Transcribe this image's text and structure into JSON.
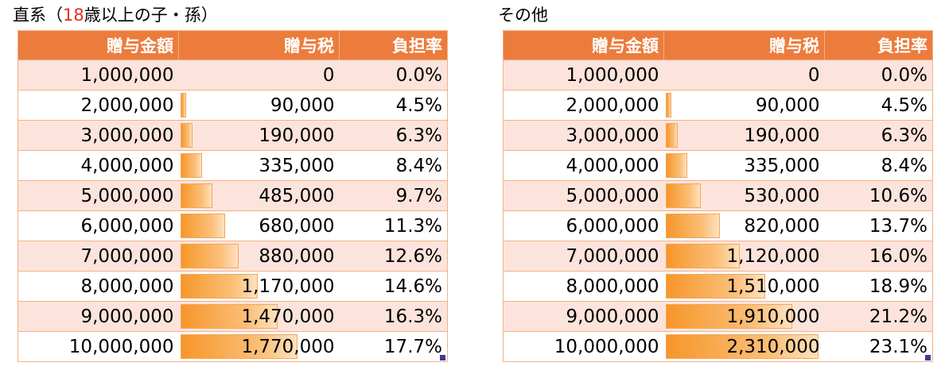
{
  "panels": [
    {
      "id": "left",
      "caption_pre": "直系（",
      "caption_accent": "18",
      "caption_post": "歳以上の子・孫）",
      "headers": [
        "贈与金額",
        "贈与税",
        "負担率"
      ],
      "rows": [
        {
          "amount": "1,000,000",
          "tax": "0",
          "rate": "0.0%",
          "tax_value": 0
        },
        {
          "amount": "2,000,000",
          "tax": "90,000",
          "rate": "4.5%",
          "tax_value": 90000
        },
        {
          "amount": "3,000,000",
          "tax": "190,000",
          "rate": "6.3%",
          "tax_value": 190000
        },
        {
          "amount": "4,000,000",
          "tax": "335,000",
          "rate": "8.4%",
          "tax_value": 335000
        },
        {
          "amount": "5,000,000",
          "tax": "485,000",
          "rate": "9.7%",
          "tax_value": 485000
        },
        {
          "amount": "6,000,000",
          "tax": "680,000",
          "rate": "11.3%",
          "tax_value": 680000
        },
        {
          "amount": "7,000,000",
          "tax": "880,000",
          "rate": "12.6%",
          "tax_value": 880000
        },
        {
          "amount": "8,000,000",
          "tax": "1,170,000",
          "rate": "14.6%",
          "tax_value": 1170000
        },
        {
          "amount": "9,000,000",
          "tax": "1,470,000",
          "rate": "16.3%",
          "tax_value": 1470000
        },
        {
          "amount": "10,000,000",
          "tax": "1,770,000",
          "rate": "17.7%",
          "tax_value": 1770000
        }
      ]
    },
    {
      "id": "right",
      "caption_pre": "その他",
      "caption_accent": "",
      "caption_post": "",
      "headers": [
        "贈与金額",
        "贈与税",
        "負担率"
      ],
      "rows": [
        {
          "amount": "1,000,000",
          "tax": "0",
          "rate": "0.0%",
          "tax_value": 0
        },
        {
          "amount": "2,000,000",
          "tax": "90,000",
          "rate": "4.5%",
          "tax_value": 90000
        },
        {
          "amount": "3,000,000",
          "tax": "190,000",
          "rate": "6.3%",
          "tax_value": 190000
        },
        {
          "amount": "4,000,000",
          "tax": "335,000",
          "rate": "8.4%",
          "tax_value": 335000
        },
        {
          "amount": "5,000,000",
          "tax": "530,000",
          "rate": "10.6%",
          "tax_value": 530000
        },
        {
          "amount": "6,000,000",
          "tax": "820,000",
          "rate": "13.7%",
          "tax_value": 820000
        },
        {
          "amount": "7,000,000",
          "tax": "1,120,000",
          "rate": "16.0%",
          "tax_value": 1120000
        },
        {
          "amount": "8,000,000",
          "tax": "1,510,000",
          "rate": "18.9%",
          "tax_value": 1510000
        },
        {
          "amount": "9,000,000",
          "tax": "1,910,000",
          "rate": "21.2%",
          "tax_value": 1910000
        },
        {
          "amount": "10,000,000",
          "tax": "2,310,000",
          "rate": "23.1%",
          "tax_value": 2310000
        }
      ]
    }
  ],
  "bar_color": "#f7962a",
  "header_color": "#ec7c3c",
  "stripe_color": "#fce4dc"
}
